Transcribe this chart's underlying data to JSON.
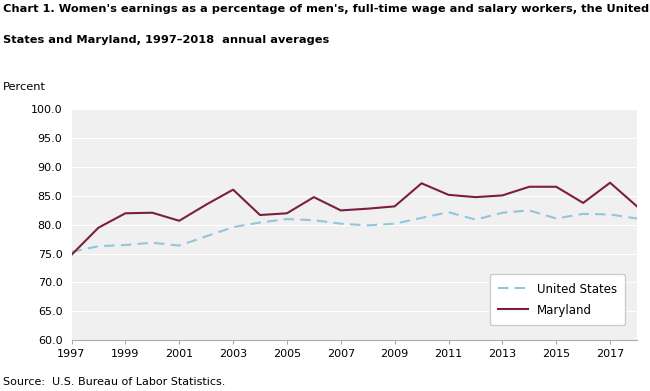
{
  "title_line1": "Chart 1. Women's earnings as a percentage of men's, full-time wage and salary workers, the United",
  "title_line2": "States and Maryland, 1997–2018  annual averages",
  "ylabel": "Percent",
  "source": "Source:  U.S. Bureau of Labor Statistics.",
  "years": [
    1997,
    1998,
    1999,
    2000,
    2001,
    2002,
    2003,
    2004,
    2005,
    2006,
    2007,
    2008,
    2009,
    2010,
    2011,
    2012,
    2013,
    2014,
    2015,
    2016,
    2017,
    2018
  ],
  "us_data": [
    75.3,
    76.3,
    76.5,
    76.9,
    76.4,
    78.0,
    79.6,
    80.4,
    81.0,
    80.8,
    80.2,
    79.9,
    80.2,
    81.2,
    82.2,
    80.9,
    82.1,
    82.5,
    81.1,
    81.9,
    81.8,
    81.1
  ],
  "md_data": [
    74.8,
    79.5,
    82.0,
    82.1,
    80.7,
    83.5,
    86.1,
    81.7,
    82.0,
    84.8,
    82.5,
    82.8,
    83.2,
    87.2,
    85.2,
    84.8,
    85.1,
    86.6,
    86.6,
    83.8,
    87.3,
    83.2
  ],
  "us_color": "#92c5de",
  "md_color": "#7b1f3e",
  "ylim": [
    60.0,
    100.0
  ],
  "yticks": [
    60.0,
    65.0,
    70.0,
    75.0,
    80.0,
    85.0,
    90.0,
    95.0,
    100.0
  ],
  "xtick_years": [
    1997,
    1999,
    2001,
    2003,
    2005,
    2007,
    2009,
    2011,
    2013,
    2015,
    2017
  ],
  "bg_color": "#ffffff",
  "plot_bg_color": "#f0f0f0",
  "grid_color": "#ffffff",
  "legend_us": "United States",
  "legend_md": "Maryland"
}
